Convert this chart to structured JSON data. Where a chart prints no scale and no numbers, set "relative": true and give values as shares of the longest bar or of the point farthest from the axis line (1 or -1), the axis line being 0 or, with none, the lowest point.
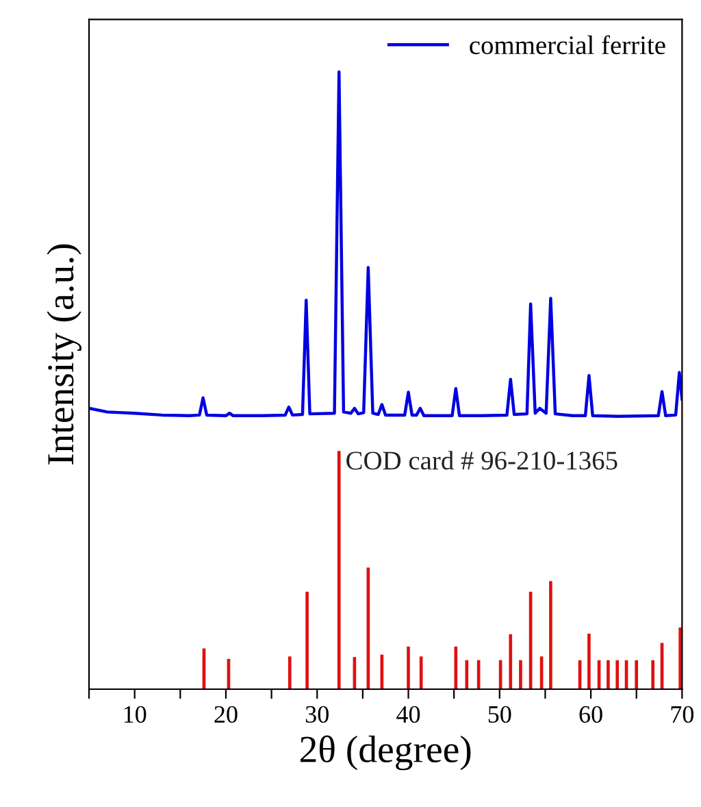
{
  "chart_data": {
    "type": "line",
    "xlabel": "2θ (degree)",
    "ylabel": "Intensity (a.u.)",
    "relative": true,
    "xlim": [
      5,
      70
    ],
    "xticks": [
      {
        "value": 5,
        "label": null
      },
      10,
      {
        "value": 15,
        "label": null
      },
      20,
      {
        "value": 25,
        "label": null
      },
      30,
      {
        "value": 35,
        "label": null
      },
      40,
      {
        "value": 45,
        "label": null
      },
      50,
      {
        "value": 55,
        "label": null
      },
      60,
      {
        "value": 65,
        "label": null
      },
      70
    ],
    "tick_labels": "x",
    "legend": "top right",
    "grid": false,
    "series": [
      {
        "name": "commercial ferrite",
        "color": "#0000e0",
        "x": [
          5,
          7,
          10,
          13,
          16,
          17.1,
          17.5,
          17.9,
          20,
          20.4,
          20.8,
          24,
          26.5,
          26.9,
          27.3,
          28.4,
          28.8,
          29.2,
          31.9,
          32.4,
          32.9,
          33.7,
          34.1,
          34.5,
          35.1,
          35.6,
          36.1,
          36.7,
          37.1,
          37.5,
          39.6,
          40.0,
          40.4,
          40.9,
          41.3,
          41.7,
          44.8,
          45.2,
          45.6,
          48,
          50.8,
          51.2,
          51.6,
          53.0,
          53.4,
          53.9,
          54.4,
          55.1,
          55.6,
          56.1,
          58,
          59.4,
          59.8,
          60.2,
          63,
          67.4,
          67.8,
          68.2,
          69.3,
          69.7,
          70
        ],
        "values": [
          0.455,
          0.449,
          0.447,
          0.444,
          0.443,
          0.444,
          0.472,
          0.444,
          0.443,
          0.447,
          0.443,
          0.443,
          0.444,
          0.457,
          0.444,
          0.445,
          0.63,
          0.446,
          0.447,
          1.0,
          0.449,
          0.447,
          0.455,
          0.446,
          0.448,
          0.683,
          0.447,
          0.445,
          0.461,
          0.444,
          0.444,
          0.481,
          0.444,
          0.444,
          0.455,
          0.443,
          0.443,
          0.487,
          0.443,
          0.443,
          0.444,
          0.502,
          0.445,
          0.446,
          0.624,
          0.447,
          0.455,
          0.447,
          0.633,
          0.446,
          0.443,
          0.443,
          0.508,
          0.443,
          0.442,
          0.443,
          0.482,
          0.443,
          0.444,
          0.513,
          0.47
        ]
      },
      {
        "name": "COD card # 96-210-1365",
        "color": "#e01010",
        "type": "bar",
        "x": [
          17.6,
          20.3,
          27.0,
          28.9,
          32.4,
          34.1,
          35.6,
          37.1,
          40.0,
          41.4,
          45.2,
          46.4,
          47.7,
          50.1,
          51.2,
          52.3,
          53.4,
          54.6,
          55.6,
          58.8,
          59.8,
          60.9,
          61.9,
          62.9,
          63.9,
          65.0,
          66.8,
          67.8,
          69.8
        ],
        "values": [
          0.066,
          0.049,
          0.053,
          0.158,
          0.386,
          0.052,
          0.197,
          0.056,
          0.069,
          0.053,
          0.069,
          0.047,
          0.047,
          0.047,
          0.089,
          0.047,
          0.158,
          0.053,
          0.175,
          0.047,
          0.09,
          0.047,
          0.047,
          0.047,
          0.047,
          0.047,
          0.047,
          0.075,
          0.1
        ]
      }
    ]
  }
}
